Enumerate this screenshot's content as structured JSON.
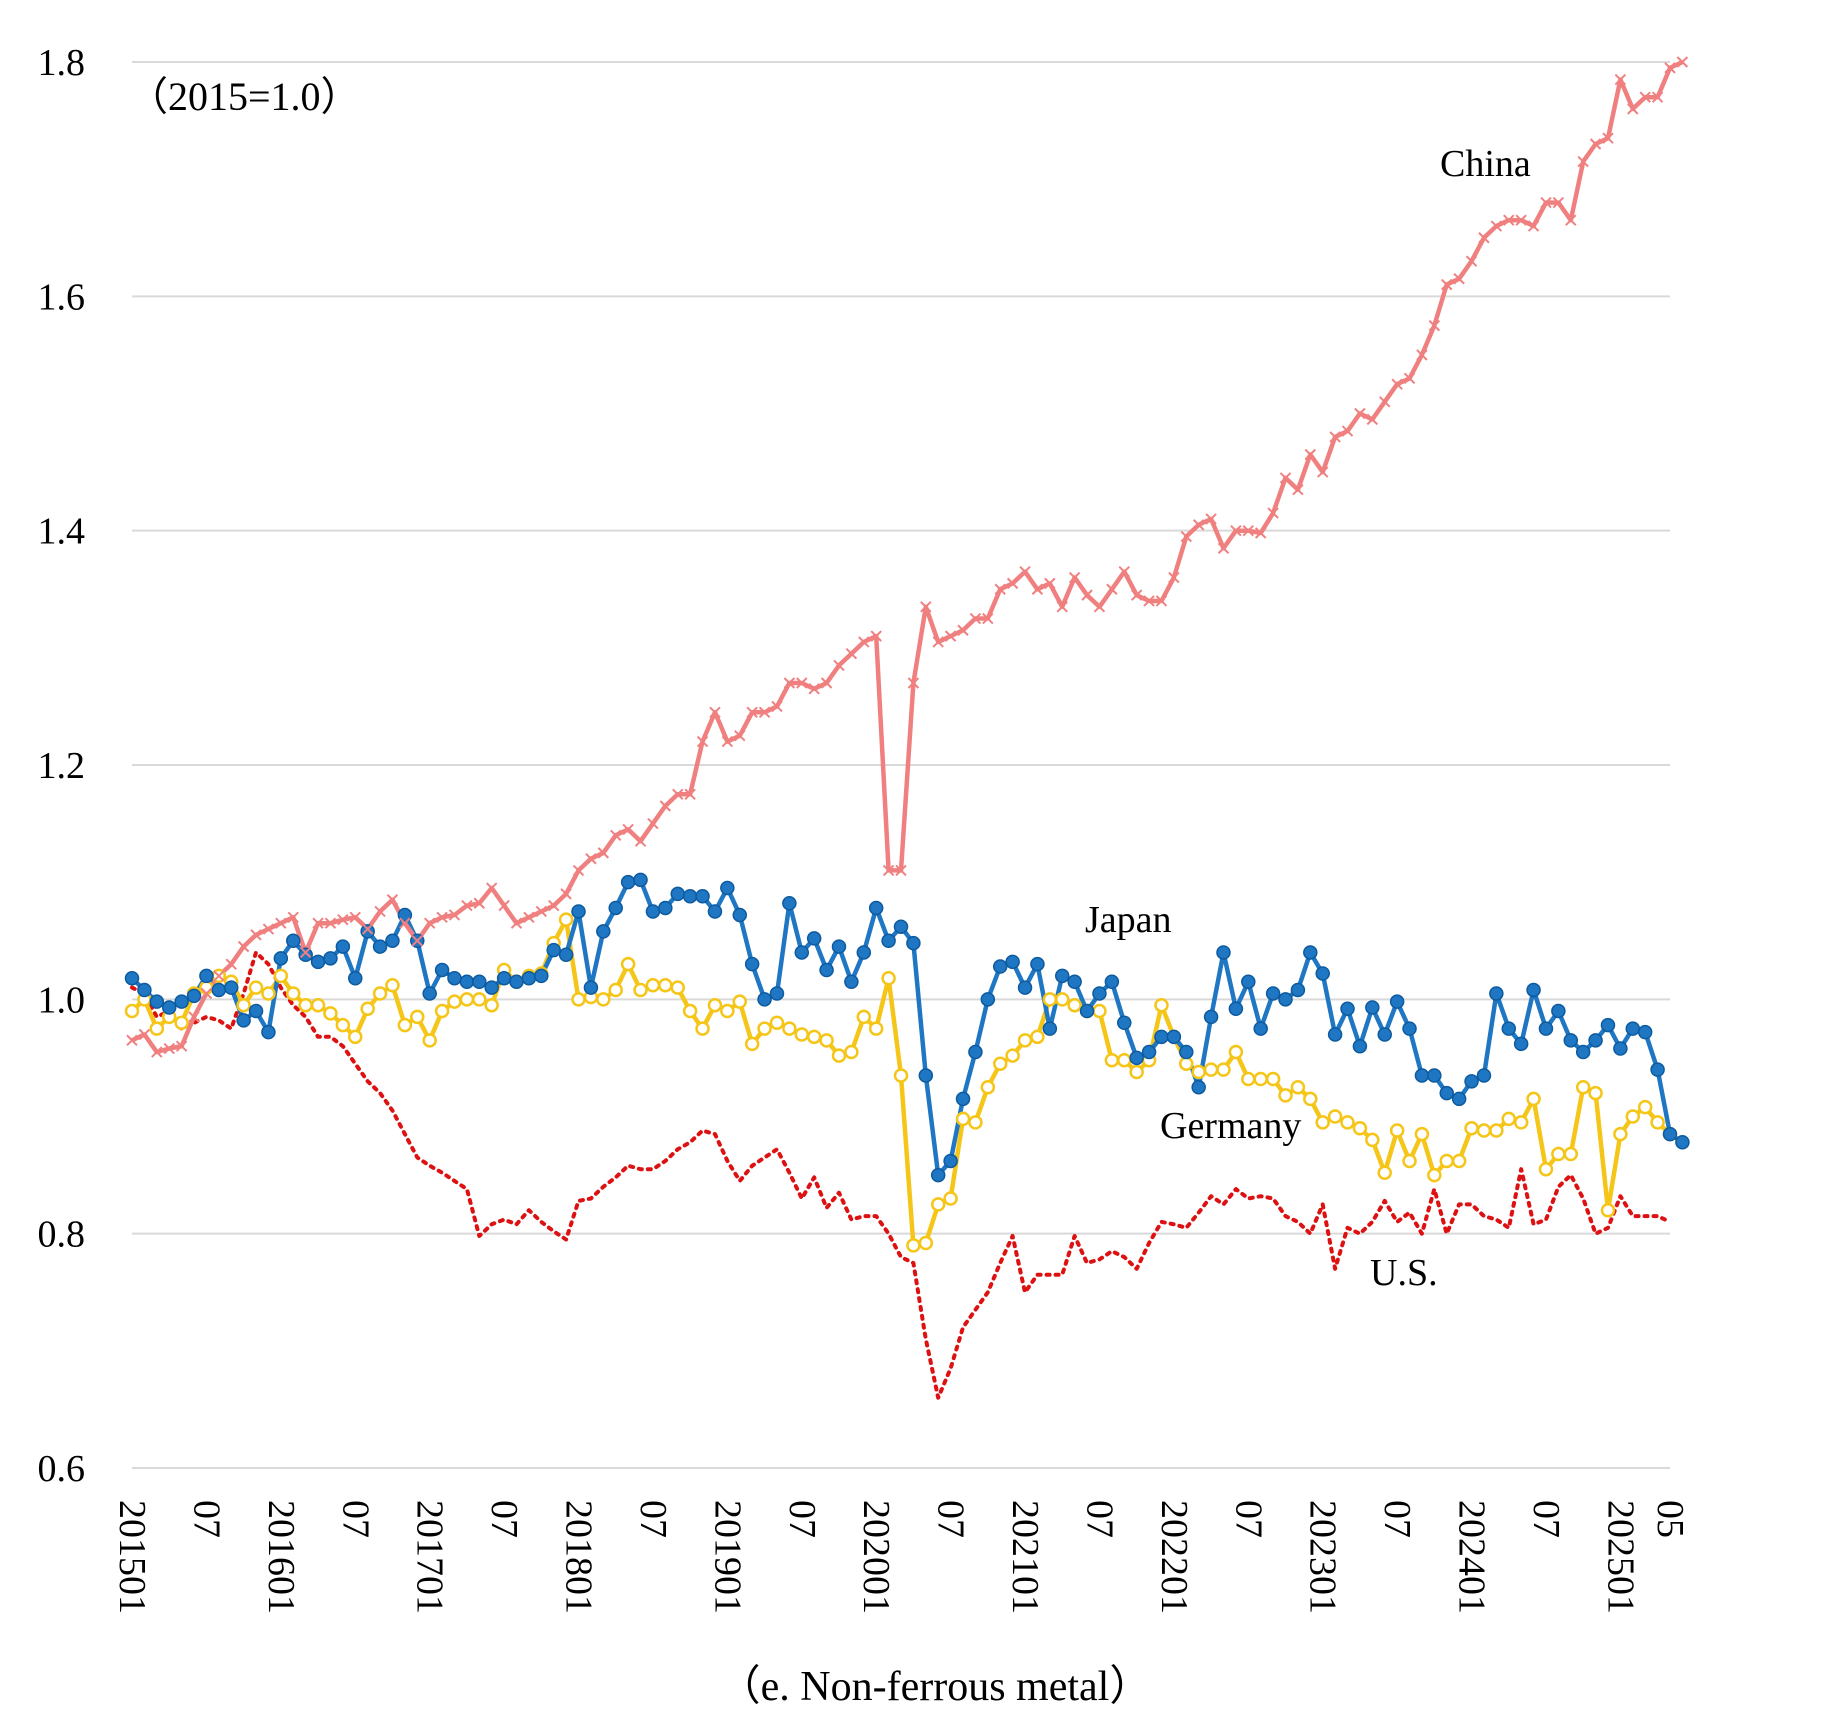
{
  "chart_data": {
    "type": "line",
    "subtitle_note": "（2015=1.0）",
    "caption": "（e. Non-ferrous metal）",
    "ylim": [
      0.6,
      1.8
    ],
    "yticks": [
      0.6,
      0.8,
      1.0,
      1.2,
      1.4,
      1.6,
      1.8
    ],
    "ytick_labels": [
      "0.6",
      "0.8",
      "1.0",
      "1.2",
      "1.4",
      "1.6",
      "1.8"
    ],
    "grid": "horizontal",
    "x_start": "2015-01",
    "x_end": "2025-05",
    "x_ticks": [
      {
        "month": "2015-01",
        "label": "201501"
      },
      {
        "month": "2015-07",
        "label": "07"
      },
      {
        "month": "2016-01",
        "label": "201601"
      },
      {
        "month": "2016-07",
        "label": "07"
      },
      {
        "month": "2017-01",
        "label": "201701"
      },
      {
        "month": "2017-07",
        "label": "07"
      },
      {
        "month": "2018-01",
        "label": "201801"
      },
      {
        "month": "2018-07",
        "label": "07"
      },
      {
        "month": "2019-01",
        "label": "201901"
      },
      {
        "month": "2019-07",
        "label": "07"
      },
      {
        "month": "2020-01",
        "label": "202001"
      },
      {
        "month": "2020-07",
        "label": "07"
      },
      {
        "month": "2021-01",
        "label": "202101"
      },
      {
        "month": "2021-07",
        "label": "07"
      },
      {
        "month": "2022-01",
        "label": "202201"
      },
      {
        "month": "2022-07",
        "label": "07"
      },
      {
        "month": "2023-01",
        "label": "202301"
      },
      {
        "month": "2023-07",
        "label": "07"
      },
      {
        "month": "2024-01",
        "label": "202401"
      },
      {
        "month": "2024-07",
        "label": "07"
      },
      {
        "month": "2025-01",
        "label": "202501"
      },
      {
        "month": "2025-05",
        "label": "05"
      }
    ],
    "series": [
      {
        "name": "China",
        "color": "#f08080",
        "style": "solid",
        "marker": "x",
        "values": [
          0.965,
          0.97,
          0.955,
          0.958,
          0.96,
          0.985,
          1.005,
          1.02,
          1.03,
          1.045,
          1.055,
          1.06,
          1.065,
          1.07,
          1.04,
          1.065,
          1.065,
          1.068,
          1.07,
          1.06,
          1.075,
          1.085,
          1.065,
          1.05,
          1.065,
          1.07,
          1.072,
          1.08,
          1.082,
          1.095,
          1.08,
          1.065,
          1.07,
          1.075,
          1.08,
          1.09,
          1.11,
          1.12,
          1.125,
          1.14,
          1.145,
          1.135,
          1.15,
          1.165,
          1.175,
          1.175,
          1.22,
          1.245,
          1.22,
          1.225,
          1.245,
          1.245,
          1.25,
          1.27,
          1.27,
          1.265,
          1.27,
          1.285,
          1.295,
          1.305,
          1.31,
          1.11,
          1.11,
          1.27,
          1.335,
          1.305,
          1.31,
          1.315,
          1.325,
          1.325,
          1.35,
          1.355,
          1.365,
          1.35,
          1.355,
          1.335,
          1.36,
          1.345,
          1.335,
          1.35,
          1.365,
          1.345,
          1.34,
          1.34,
          1.36,
          1.395,
          1.405,
          1.41,
          1.385,
          1.4,
          1.4,
          1.398,
          1.415,
          1.445,
          1.435,
          1.465,
          1.45,
          1.48,
          1.485,
          1.5,
          1.495,
          1.51,
          1.525,
          1.53,
          1.55,
          1.575,
          1.61,
          1.615,
          1.63,
          1.65,
          1.66,
          1.665,
          1.665,
          1.66,
          1.68,
          1.68,
          1.665,
          1.715,
          1.73,
          1.735,
          1.785,
          1.76,
          1.77,
          1.77,
          1.795,
          1.8
        ]
      },
      {
        "name": "Japan",
        "color": "#1f77c4",
        "style": "solid",
        "marker": "filled-circle",
        "values": [
          1.018,
          1.008,
          0.998,
          0.993,
          0.998,
          1.003,
          1.02,
          1.008,
          1.01,
          0.982,
          0.99,
          0.972,
          1.035,
          1.05,
          1.038,
          1.032,
          1.035,
          1.045,
          1.018,
          1.058,
          1.045,
          1.05,
          1.072,
          1.05,
          1.005,
          1.025,
          1.018,
          1.015,
          1.015,
          1.01,
          1.018,
          1.015,
          1.018,
          1.02,
          1.042,
          1.038,
          1.075,
          1.01,
          1.058,
          1.078,
          1.1,
          1.102,
          1.075,
          1.078,
          1.09,
          1.088,
          1.088,
          1.075,
          1.095,
          1.072,
          1.03,
          1.0,
          1.005,
          1.082,
          1.04,
          1.052,
          1.025,
          1.045,
          1.015,
          1.04,
          1.078,
          1.05,
          1.062,
          1.048,
          0.935,
          0.85,
          0.862,
          0.915,
          0.955,
          1.0,
          1.028,
          1.032,
          1.01,
          1.03,
          0.975,
          1.02,
          1.015,
          0.99,
          1.005,
          1.015,
          0.98,
          0.95,
          0.955,
          0.968,
          0.968,
          0.955,
          0.925,
          0.985,
          1.04,
          0.992,
          1.015,
          0.975,
          1.005,
          1.0,
          1.008,
          1.04,
          1.022,
          0.97,
          0.992,
          0.96,
          0.993,
          0.97,
          0.998,
          0.975,
          0.935,
          0.935,
          0.92,
          0.915,
          0.93,
          0.935,
          1.005,
          0.975,
          0.962,
          1.008,
          0.975,
          0.99,
          0.965,
          0.955,
          0.965,
          0.978,
          0.958,
          0.975,
          0.972,
          0.94,
          0.885,
          0.878
        ]
      },
      {
        "name": "Germany",
        "color": "#f5c518",
        "style": "solid",
        "marker": "open-circle",
        "values": [
          0.99,
          1.0,
          0.975,
          0.985,
          0.98,
          1.005,
          1.01,
          1.02,
          1.015,
          0.995,
          1.01,
          1.005,
          1.02,
          1.005,
          0.995,
          0.995,
          0.988,
          0.978,
          0.968,
          0.992,
          1.005,
          1.012,
          0.978,
          0.985,
          0.965,
          0.99,
          0.998,
          1.0,
          1.0,
          0.995,
          1.025,
          1.015,
          1.02,
          1.022,
          1.048,
          1.068,
          1.0,
          1.002,
          1.0,
          1.008,
          1.03,
          1.008,
          1.012,
          1.012,
          1.01,
          0.99,
          0.975,
          0.995,
          0.99,
          0.998,
          0.962,
          0.975,
          0.98,
          0.975,
          0.97,
          0.968,
          0.965,
          0.952,
          0.955,
          0.985,
          0.975,
          1.018,
          0.935,
          0.79,
          0.792,
          0.825,
          0.83,
          0.898,
          0.895,
          0.925,
          0.945,
          0.952,
          0.965,
          0.968,
          1.0,
          1.0,
          0.995,
          0.99,
          0.99,
          0.948,
          0.948,
          0.938,
          0.948,
          0.995,
          0.968,
          0.945,
          0.938,
          0.94,
          0.94,
          0.955,
          0.932,
          0.932,
          0.932,
          0.918,
          0.925,
          0.915,
          0.895,
          0.9,
          0.895,
          0.89,
          0.88,
          0.852,
          0.888,
          0.862,
          0.885,
          0.85,
          0.862,
          0.862,
          0.89,
          0.888,
          0.888,
          0.898,
          0.895,
          0.915,
          0.855,
          0.868,
          0.868,
          0.925,
          0.92,
          0.82,
          0.885,
          0.9,
          0.908,
          0.895,
          0.885
        ]
      },
      {
        "name": "U.S.",
        "color": "#dd1111",
        "style": "dotted",
        "marker": "none",
        "values": [
          1.01,
          1.005,
          0.985,
          0.99,
          0.975,
          0.98,
          0.985,
          0.982,
          0.975,
          1.005,
          1.04,
          1.03,
          1.01,
          0.995,
          0.985,
          0.968,
          0.968,
          0.96,
          0.945,
          0.93,
          0.92,
          0.905,
          0.885,
          0.865,
          0.858,
          0.852,
          0.845,
          0.838,
          0.798,
          0.808,
          0.812,
          0.808,
          0.82,
          0.81,
          0.802,
          0.795,
          0.828,
          0.83,
          0.84,
          0.848,
          0.858,
          0.855,
          0.855,
          0.862,
          0.872,
          0.878,
          0.888,
          0.885,
          0.862,
          0.845,
          0.858,
          0.865,
          0.872,
          0.852,
          0.83,
          0.848,
          0.822,
          0.835,
          0.812,
          0.815,
          0.815,
          0.8,
          0.78,
          0.775,
          0.71,
          0.66,
          0.685,
          0.72,
          0.735,
          0.75,
          0.775,
          0.798,
          0.75,
          0.765,
          0.765,
          0.765,
          0.798,
          0.775,
          0.778,
          0.785,
          0.78,
          0.77,
          0.792,
          0.81,
          0.808,
          0.805,
          0.818,
          0.832,
          0.825,
          0.838,
          0.83,
          0.832,
          0.83,
          0.815,
          0.81,
          0.8,
          0.825,
          0.77,
          0.805,
          0.8,
          0.81,
          0.828,
          0.81,
          0.818,
          0.8,
          0.838,
          0.8,
          0.825,
          0.825,
          0.815,
          0.812,
          0.805,
          0.855,
          0.808,
          0.812,
          0.84,
          0.85,
          0.83,
          0.8,
          0.805,
          0.832,
          0.815,
          0.815,
          0.815,
          0.81
        ]
      }
    ],
    "series_labels": [
      {
        "series": "China",
        "text": "China"
      },
      {
        "series": "Japan",
        "text": "Japan"
      },
      {
        "series": "Germany",
        "text": "Germany"
      },
      {
        "series": "U.S.",
        "text": "U.S."
      }
    ]
  }
}
